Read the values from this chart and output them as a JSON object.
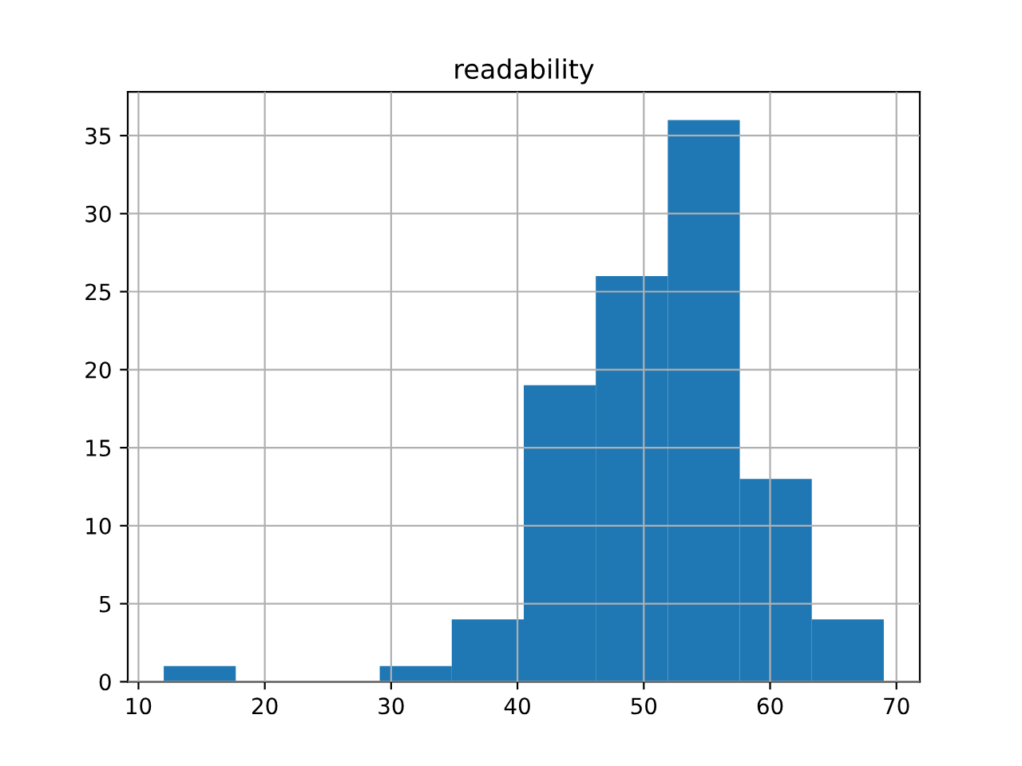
{
  "chart_data": {
    "type": "histogram",
    "title": "readability",
    "bins": [
      12,
      17.7,
      23.4,
      29.1,
      34.8,
      40.5,
      46.2,
      51.9,
      57.6,
      63.3,
      69
    ],
    "values": [
      1,
      0,
      0,
      1,
      4,
      19,
      26,
      36,
      13,
      4
    ],
    "color": "#1f77b4",
    "xlim": [
      9.15,
      71.85
    ],
    "xticks": [
      10,
      20,
      30,
      40,
      50,
      60,
      70
    ],
    "ylim": [
      0,
      37.8
    ],
    "yticks": [
      0,
      5,
      10,
      15,
      20,
      25,
      30,
      35
    ],
    "grid": true
  }
}
